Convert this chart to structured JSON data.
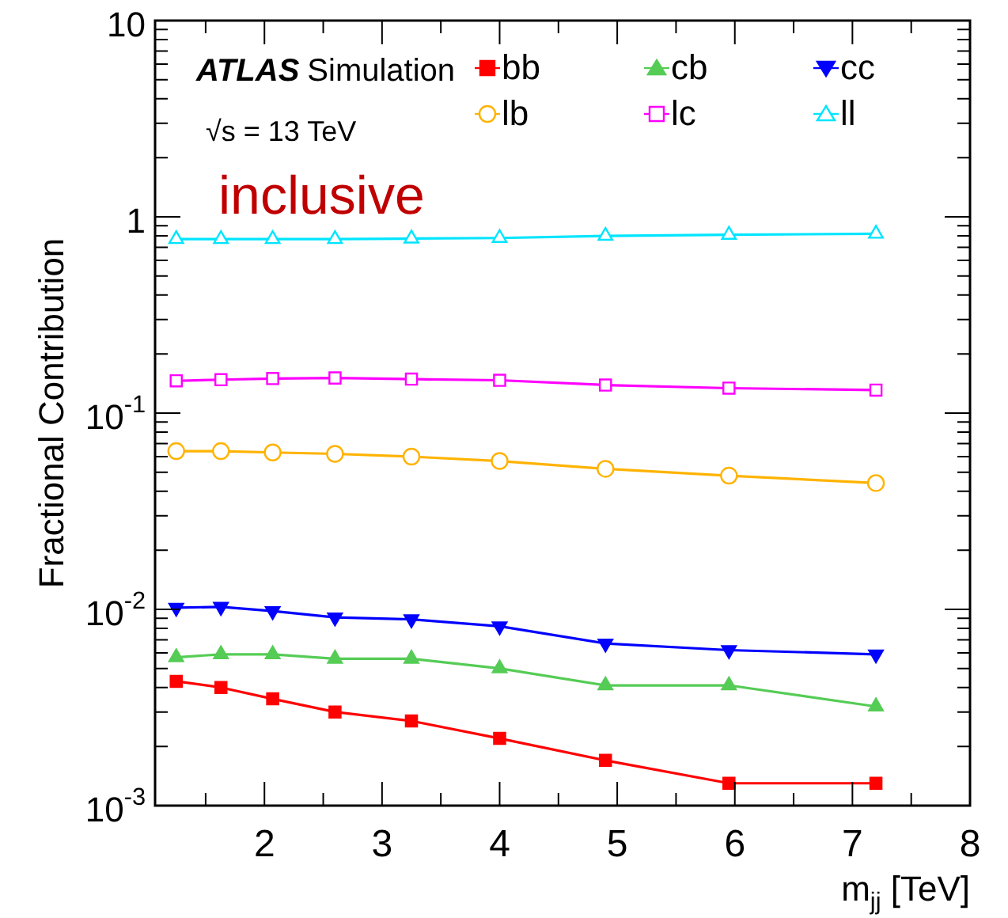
{
  "chart_data": {
    "type": "line",
    "xlabel": "m$_{jj}$ [TeV]",
    "ylabel": "Fractional Contribution",
    "annotations": [
      "ATLAS",
      "Simulation",
      "√s = 13 TeV",
      "inclusive"
    ],
    "x": [
      1.25,
      1.63,
      2.07,
      2.6,
      3.25,
      4.0,
      4.9,
      5.95,
      7.2
    ],
    "series": [
      {
        "name": "bb",
        "color": "#ff0000",
        "marker": "square",
        "values": [
          0.0043,
          0.004,
          0.0035,
          0.003,
          0.0027,
          0.0022,
          0.0017,
          0.0013,
          0.0013
        ]
      },
      {
        "name": "cb",
        "color": "#55cc55",
        "marker": "triangle",
        "values": [
          0.0057,
          0.0059,
          0.0059,
          0.0056,
          0.0056,
          0.005,
          0.0041,
          0.0041,
          0.0032
        ]
      },
      {
        "name": "cc",
        "color": "#0000ff",
        "marker": "triangle-down",
        "values": [
          0.0102,
          0.0103,
          0.0098,
          0.0091,
          0.0089,
          0.0082,
          0.0067,
          0.0062,
          0.0059
        ]
      },
      {
        "name": "lb",
        "color": "#ffb300",
        "marker": "circle-open",
        "values": [
          0.064,
          0.064,
          0.063,
          0.062,
          0.06,
          0.057,
          0.052,
          0.048,
          0.044
        ]
      },
      {
        "name": "lc",
        "color": "#ff00ff",
        "marker": "square-open",
        "values": [
          0.146,
          0.148,
          0.15,
          0.151,
          0.149,
          0.147,
          0.139,
          0.134,
          0.131
        ]
      },
      {
        "name": "ll",
        "color": "#00e5ff",
        "marker": "triangle-open",
        "values": [
          0.77,
          0.77,
          0.77,
          0.77,
          0.775,
          0.78,
          0.8,
          0.81,
          0.82
        ]
      }
    ],
    "log": "y",
    "xlim": [
      1.07,
      8
    ],
    "ylim": [
      0.001,
      10
    ],
    "xticks": [
      {
        "value": 1.5,
        "label": null
      },
      2,
      {
        "value": 2.5,
        "label": null
      },
      3,
      {
        "value": 3.5,
        "label": null
      },
      4,
      {
        "value": 4.5,
        "label": null
      },
      5,
      {
        "value": 5.5,
        "label": null
      },
      6,
      {
        "value": 6.5,
        "label": null
      },
      7,
      {
        "value": 7.5,
        "label": null
      },
      8
    ],
    "yticks": [
      {
        "value": 0.001,
        "label": "10$^{-3}$"
      },
      {
        "value": 0.002,
        "label": null
      },
      {
        "value": 0.003,
        "label": null
      },
      {
        "value": 0.004,
        "label": null
      },
      {
        "value": 0.005,
        "label": null
      },
      {
        "value": 0.006,
        "label": null
      },
      {
        "value": 0.007,
        "label": null
      },
      {
        "value": 0.008,
        "label": null
      },
      {
        "value": 0.009,
        "label": null
      },
      {
        "value": 0.01,
        "label": "10$^{-2}$"
      },
      {
        "value": 0.02,
        "label": null
      },
      {
        "value": 0.03,
        "label": null
      },
      {
        "value": 0.04,
        "label": null
      },
      {
        "value": 0.05,
        "label": null
      },
      {
        "value": 0.06,
        "label": null
      },
      {
        "value": 0.07,
        "label": null
      },
      {
        "value": 0.08,
        "label": null
      },
      {
        "value": 0.09,
        "label": null
      },
      {
        "value": 0.1,
        "label": "10$^{-1}$"
      },
      {
        "value": 0.2,
        "label": null
      },
      {
        "value": 0.3,
        "label": null
      },
      {
        "value": 0.4,
        "label": null
      },
      {
        "value": 0.5,
        "label": null
      },
      {
        "value": 0.6,
        "label": null
      },
      {
        "value": 0.7,
        "label": null
      },
      {
        "value": 0.8,
        "label": null
      },
      {
        "value": 0.9,
        "label": null
      },
      1,
      {
        "value": 2,
        "label": null
      },
      {
        "value": 3,
        "label": null
      },
      {
        "value": 4,
        "label": null
      },
      {
        "value": 5,
        "label": null
      },
      {
        "value": 6,
        "label": null
      },
      {
        "value": 7,
        "label": null
      },
      {
        "value": 8,
        "label": null
      },
      {
        "value": 9,
        "label": null
      },
      10
    ],
    "grid": false,
    "legend": "top right",
    "line_style": "solid"
  }
}
